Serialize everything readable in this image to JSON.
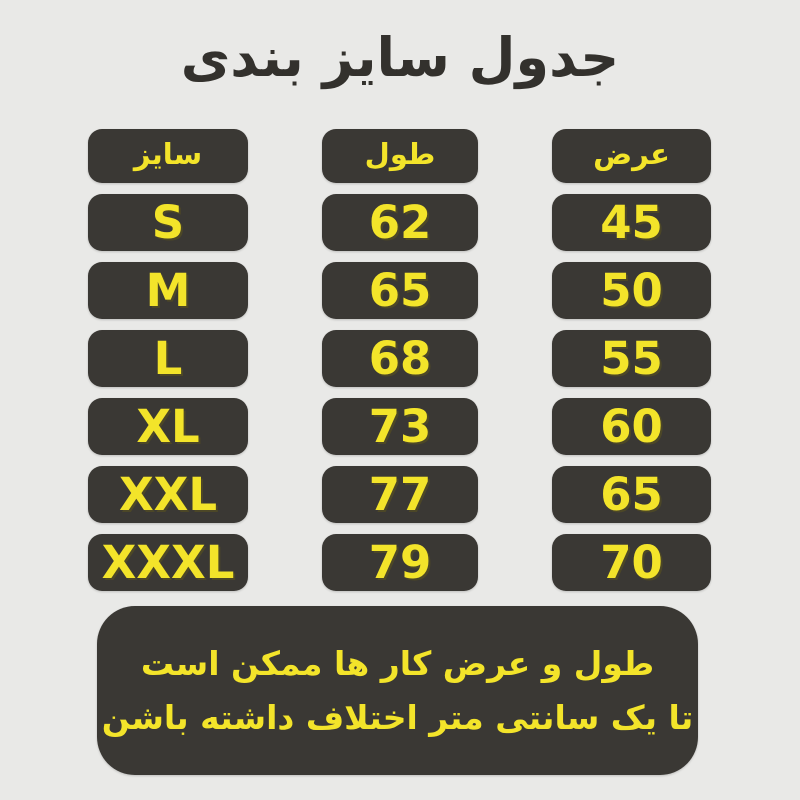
{
  "title": "جدول سایز بندی",
  "table": {
    "headers": [
      {
        "key": "size",
        "label": "سایز"
      },
      {
        "key": "length",
        "label": "طول"
      },
      {
        "key": "width",
        "label": "عرض"
      }
    ],
    "rows": [
      {
        "size": "S",
        "length": "62",
        "width": "45"
      },
      {
        "size": "M",
        "length": "65",
        "width": "50"
      },
      {
        "size": "L",
        "length": "68",
        "width": "55"
      },
      {
        "size": "XL",
        "length": "73",
        "width": "60"
      },
      {
        "size": "XXL",
        "length": "77",
        "width": "65"
      },
      {
        "size": "XXXL",
        "length": "79",
        "width": "70"
      }
    ]
  },
  "note": {
    "line1": "طول و عرض کار ها ممکن است",
    "line2": "تا یک سانتی متر اختلاف داشته باشن"
  },
  "colors": {
    "background": "#e9e9e7",
    "pill": "#3a3834",
    "accent_yellow": "#f3e42a",
    "title_text": "#33312d"
  },
  "chart_data": {
    "type": "table",
    "title": "جدول سایز بندی",
    "columns": [
      "سایز",
      "طول",
      "عرض"
    ],
    "rows": [
      [
        "S",
        62,
        45
      ],
      [
        "M",
        65,
        50
      ],
      [
        "L",
        68,
        55
      ],
      [
        "XL",
        73,
        60
      ],
      [
        "XXL",
        77,
        65
      ],
      [
        "XXXL",
        79,
        70
      ]
    ],
    "note": "طول و عرض کار ها ممکن است تا یک سانتی متر اختلاف داشته باشن"
  }
}
